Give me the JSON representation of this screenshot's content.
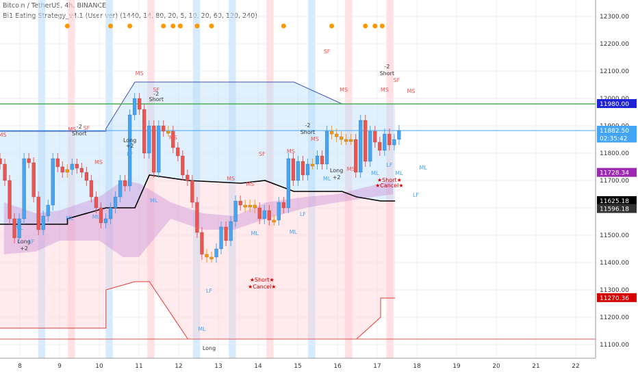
{
  "header": {
    "symbol_line": "Bitcoin / TetherUS, 4h, BINANCE",
    "indicator_line": "Bi1 Eating Strategy_v4.1 (User ver) (1440, 14, 80, 20, 5, 10, 20, 60, 120, 240)"
  },
  "colors": {
    "up": "#42a5f5",
    "down": "#ef5350",
    "neutral": "#ff9800",
    "doji_gray": "#9e9e9e",
    "upper_band": "#3f51b5",
    "mid_line": "#000000",
    "lower_band": "#e53935",
    "green_line": "#4caf50",
    "orange_dot": "#ff9800"
  },
  "chart_data": {
    "type": "candlestick",
    "x_axis": {
      "tick_labels": [
        "8",
        "9",
        "10",
        "11",
        "12",
        "13",
        "14",
        "15",
        "16",
        "17",
        "18",
        "19",
        "20",
        "21",
        "22"
      ],
      "range": [
        7.5,
        22.5
      ]
    },
    "y_axis": {
      "tick_labels": [
        "12300.00",
        "12200.00",
        "12100.00",
        "12000.00",
        "11900.00",
        "11800.00",
        "11700.00",
        "11600.00",
        "11500.00",
        "11400.00",
        "11300.00",
        "11200.00",
        "11100.00"
      ],
      "tick_values": [
        12300,
        12200,
        12100,
        12000,
        11900,
        11800,
        11700,
        11600,
        11500,
        11400,
        11300,
        11200,
        11100
      ],
      "range": [
        11050,
        12360
      ]
    },
    "price_labels": [
      {
        "text": "11980.00",
        "value": 11980,
        "color": "#1e24d6"
      },
      {
        "text": "11882.50",
        "value": 11882.5,
        "color": "#42a5f5"
      },
      {
        "text": "02:35:42",
        "value": 11854,
        "color": "#42a5f5"
      },
      {
        "text": "11728.34",
        "value": 11728.34,
        "color": "#9c27b0"
      },
      {
        "text": "11625.18",
        "value": 11625.18,
        "color": "#000000"
      },
      {
        "text": "11596.18",
        "value": 11596.18,
        "color": "#333333"
      },
      {
        "text": "11270.36",
        "value": 11270.36,
        "color": "#d50000"
      }
    ],
    "horizontal_lines": [
      {
        "name": "resistance",
        "value": 11980,
        "color": "#4caf50"
      },
      {
        "name": "support",
        "value": 11120,
        "color": "#ef5350"
      },
      {
        "name": "last-price",
        "value": 11882.5,
        "color": "#42a5f5"
      }
    ],
    "candles": [
      {
        "x": 7.5,
        "o": 11780,
        "c": 11760
      },
      {
        "x": 7.6,
        "o": 11760,
        "c": 11700
      },
      {
        "x": 7.7,
        "o": 11700,
        "c": 11560
      },
      {
        "x": 7.8,
        "o": 11560,
        "c": 11490
      },
      {
        "x": 7.9,
        "o": 11490,
        "c": 11560
      },
      {
        "x": 8.0,
        "o": 11560,
        "c": 11780
      },
      {
        "x": 8.1,
        "o": 11780,
        "c": 11765
      },
      {
        "x": 8.2,
        "o": 11765,
        "c": 11640
      },
      {
        "x": 8.3,
        "o": 11640,
        "c": 11520
      },
      {
        "x": 8.4,
        "o": 11520,
        "c": 11570
      },
      {
        "x": 8.5,
        "o": 11570,
        "c": 11610
      },
      {
        "x": 8.6,
        "o": 11610,
        "c": 11780
      },
      {
        "x": 8.7,
        "o": 11780,
        "c": 11750
      },
      {
        "x": 8.8,
        "o": 11750,
        "c": 11730
      },
      {
        "x": 8.9,
        "o": 11730,
        "c": 11740
      },
      {
        "x": 9.0,
        "o": 11740,
        "c": 11760
      },
      {
        "x": 9.1,
        "o": 11760,
        "c": 11745
      },
      {
        "x": 9.2,
        "o": 11745,
        "c": 11730
      },
      {
        "x": 9.3,
        "o": 11730,
        "c": 11700
      },
      {
        "x": 9.4,
        "o": 11700,
        "c": 11640
      },
      {
        "x": 9.5,
        "o": 11640,
        "c": 11600
      },
      {
        "x": 9.6,
        "o": 11600,
        "c": 11545
      },
      {
        "x": 9.7,
        "o": 11545,
        "c": 11560
      },
      {
        "x": 9.8,
        "o": 11560,
        "c": 11600
      },
      {
        "x": 9.9,
        "o": 11600,
        "c": 11640
      },
      {
        "x": 10.0,
        "o": 11640,
        "c": 11700
      },
      {
        "x": 10.1,
        "o": 11700,
        "c": 11680
      },
      {
        "x": 10.2,
        "o": 11680,
        "c": 11940
      },
      {
        "x": 10.3,
        "o": 11940,
        "c": 12000
      },
      {
        "x": 10.4,
        "o": 12000,
        "c": 11960
      },
      {
        "x": 10.5,
        "o": 11960,
        "c": 11800
      },
      {
        "x": 10.6,
        "o": 11800,
        "c": 11900
      },
      {
        "x": 10.7,
        "o": 11900,
        "c": 11730
      },
      {
        "x": 10.8,
        "o": 11730,
        "c": 11900
      },
      {
        "x": 10.9,
        "o": 11900,
        "c": 11880
      },
      {
        "x": 11.0,
        "o": 11880,
        "c": 11880
      },
      {
        "x": 11.1,
        "o": 11880,
        "c": 11820
      },
      {
        "x": 11.2,
        "o": 11820,
        "c": 11790
      },
      {
        "x": 11.3,
        "o": 11790,
        "c": 11720
      },
      {
        "x": 11.4,
        "o": 11720,
        "c": 11700
      },
      {
        "x": 11.5,
        "o": 11700,
        "c": 11620
      },
      {
        "x": 11.6,
        "o": 11620,
        "c": 11510
      },
      {
        "x": 11.7,
        "o": 11510,
        "c": 11430
      },
      {
        "x": 11.8,
        "o": 11430,
        "c": 11420
      },
      {
        "x": 11.9,
        "o": 11420,
        "c": 11420
      },
      {
        "x": 12.0,
        "o": 11420,
        "c": 11450
      },
      {
        "x": 12.1,
        "o": 11450,
        "c": 11530
      },
      {
        "x": 12.2,
        "o": 11530,
        "c": 11480
      },
      {
        "x": 12.3,
        "o": 11480,
        "c": 11550
      },
      {
        "x": 12.4,
        "o": 11550,
        "c": 11625
      },
      {
        "x": 12.5,
        "o": 11625,
        "c": 11610
      },
      {
        "x": 12.6,
        "o": 11610,
        "c": 11605
      },
      {
        "x": 12.7,
        "o": 11605,
        "c": 11610
      },
      {
        "x": 12.8,
        "o": 11610,
        "c": 11600
      },
      {
        "x": 12.9,
        "o": 11600,
        "c": 11560
      },
      {
        "x": 13.0,
        "o": 11560,
        "c": 11590
      },
      {
        "x": 13.1,
        "o": 11590,
        "c": 11555
      },
      {
        "x": 13.2,
        "o": 11555,
        "c": 11555
      },
      {
        "x": 13.3,
        "o": 11555,
        "c": 11620
      },
      {
        "x": 13.4,
        "o": 11620,
        "c": 11600
      },
      {
        "x": 13.5,
        "o": 11600,
        "c": 11780
      },
      {
        "x": 13.6,
        "o": 11780,
        "c": 11700
      },
      {
        "x": 13.7,
        "o": 11700,
        "c": 11770
      },
      {
        "x": 13.8,
        "o": 11770,
        "c": 11720
      },
      {
        "x": 13.9,
        "o": 11720,
        "c": 11760
      },
      {
        "x": 14.0,
        "o": 11760,
        "c": 11760
      },
      {
        "x": 14.1,
        "o": 11760,
        "c": 11790
      },
      {
        "x": 14.2,
        "o": 11790,
        "c": 11760
      },
      {
        "x": 14.3,
        "o": 11760,
        "c": 11880
      },
      {
        "x": 14.4,
        "o": 11880,
        "c": 11870
      },
      {
        "x": 14.5,
        "o": 11870,
        "c": 11860
      },
      {
        "x": 14.6,
        "o": 11860,
        "c": 11850
      },
      {
        "x": 14.7,
        "o": 11850,
        "c": 11850
      },
      {
        "x": 14.8,
        "o": 11850,
        "c": 11850
      },
      {
        "x": 14.9,
        "o": 11850,
        "c": 11730
      },
      {
        "x": 15.0,
        "o": 11730,
        "c": 11920
      },
      {
        "x": 15.1,
        "o": 11920,
        "c": 11770
      },
      {
        "x": 15.2,
        "o": 11770,
        "c": 11880
      },
      {
        "x": 15.3,
        "o": 11880,
        "c": 11840
      },
      {
        "x": 15.4,
        "o": 11840,
        "c": 11810
      },
      {
        "x": 15.5,
        "o": 11810,
        "c": 11870
      },
      {
        "x": 15.6,
        "o": 11870,
        "c": 11830
      },
      {
        "x": 15.7,
        "o": 11830,
        "c": 11850
      },
      {
        "x": 15.8,
        "o": 11850,
        "c": 11882.5
      }
    ],
    "bands": {
      "x": [
        7.5,
        8.9,
        8.9,
        9.7,
        9.7,
        10.3,
        10.6,
        10.6,
        11.4,
        12.5,
        13.0,
        13.6,
        14.6,
        14.9,
        15.4,
        15.4,
        15.7
      ],
      "upper": [
        11880,
        11880,
        11880,
        11880,
        11890,
        12060,
        12060,
        12060,
        12060,
        12060,
        12060,
        12060,
        11980,
        11980,
        11980,
        11980,
        11980
      ],
      "mid": [
        11540,
        11540,
        11560,
        11600,
        11600,
        11600,
        11720,
        11720,
        11700,
        11690,
        11700,
        11660,
        11660,
        11640,
        11625,
        11625,
        11625
      ],
      "lower": [
        11160,
        11160,
        11160,
        11160,
        11300,
        11330,
        11330,
        11330,
        11120,
        11120,
        11120,
        11120,
        11120,
        11120,
        11200,
        11270,
        11270
      ]
    },
    "annotations": [
      {
        "text": "MS",
        "x": 7.55,
        "y": 11860,
        "color": "#ef5350"
      },
      {
        "text": "MS",
        "x": 9.0,
        "y": 11880,
        "color": "#ef5350"
      },
      {
        "text": "-2",
        "x": 9.15,
        "y": 11890,
        "color": "#333"
      },
      {
        "text": "Short",
        "x": 9.15,
        "y": 11865,
        "color": "#333"
      },
      {
        "text": "SF",
        "x": 9.3,
        "y": 11885,
        "color": "#ef5350"
      },
      {
        "text": "MS",
        "x": 9.55,
        "y": 11760,
        "color": "#ef5350"
      },
      {
        "text": "MS",
        "x": 10.4,
        "y": 12085,
        "color": "#ef5350"
      },
      {
        "text": "SF",
        "x": 10.75,
        "y": 12025,
        "color": "#ef5350"
      },
      {
        "text": "-2",
        "x": 10.75,
        "y": 12010,
        "color": "#333"
      },
      {
        "text": "Short",
        "x": 10.75,
        "y": 11990,
        "color": "#333"
      },
      {
        "text": "MS",
        "x": 11.1,
        "y": 11850,
        "color": "#ef5350"
      },
      {
        "text": "Long",
        "x": 10.2,
        "y": 11840,
        "color": "#333"
      },
      {
        "text": "+2",
        "x": 10.2,
        "y": 11820,
        "color": "#333"
      },
      {
        "text": "LF",
        "x": 10.2,
        "y": 11790,
        "color": "#42a5f5"
      },
      {
        "text": "ML",
        "x": 7.9,
        "y": 11520,
        "color": "#42a5f5"
      },
      {
        "text": "Long",
        "x": 8.0,
        "y": 11470,
        "color": "#333"
      },
      {
        "text": "+2",
        "x": 8.0,
        "y": 11445,
        "color": "#333"
      },
      {
        "text": "LF",
        "x": 8.15,
        "y": 11470,
        "color": "#42a5f5"
      },
      {
        "text": "ML",
        "x": 8.95,
        "y": 11555,
        "color": "#42a5f5"
      },
      {
        "text": "ML",
        "x": 9.5,
        "y": 11560,
        "color": "#42a5f5"
      },
      {
        "text": "ML",
        "x": 10.7,
        "y": 11620,
        "color": "#42a5f5"
      },
      {
        "text": "MS",
        "x": 12.3,
        "y": 11700,
        "color": "#ef5350"
      },
      {
        "text": "MS",
        "x": 12.7,
        "y": 11680,
        "color": "#ef5350"
      },
      {
        "text": "SF",
        "x": 12.95,
        "y": 11790,
        "color": "#ef5350"
      },
      {
        "text": "ML",
        "x": 12.8,
        "y": 11500,
        "color": "#42a5f5"
      },
      {
        "text": "★Short★",
        "x": 12.95,
        "y": 11330,
        "color": "#d50000"
      },
      {
        "text": "★Cancel★",
        "x": 12.95,
        "y": 11305,
        "color": "#d50000"
      },
      {
        "text": "LF",
        "x": 11.85,
        "y": 11290,
        "color": "#42a5f5"
      },
      {
        "text": "ML",
        "x": 11.7,
        "y": 11150,
        "color": "#42a5f5"
      },
      {
        "text": "Long",
        "x": 11.85,
        "y": 11080,
        "color": "#333"
      },
      {
        "text": "LF",
        "x": 13.8,
        "y": 11570,
        "color": "#42a5f5"
      },
      {
        "text": "ML",
        "x": 13.6,
        "y": 11505,
        "color": "#42a5f5"
      },
      {
        "text": "-2",
        "x": 13.9,
        "y": 11895,
        "color": "#333"
      },
      {
        "text": "Short",
        "x": 13.9,
        "y": 11870,
        "color": "#333"
      },
      {
        "text": "MS",
        "x": 14.05,
        "y": 11845,
        "color": "#ef5350"
      },
      {
        "text": "MS",
        "x": 13.55,
        "y": 11800,
        "color": "#ef5350"
      },
      {
        "text": "MS",
        "x": 14.8,
        "y": 11735,
        "color": "#ef5350"
      },
      {
        "text": "ML",
        "x": 14.3,
        "y": 11700,
        "color": "#42a5f5"
      },
      {
        "text": "Long",
        "x": 14.5,
        "y": 11730,
        "color": "#333"
      },
      {
        "text": "+2",
        "x": 14.5,
        "y": 11705,
        "color": "#333"
      },
      {
        "text": "SF",
        "x": 14.3,
        "y": 12165,
        "color": "#ef5350"
      },
      {
        "text": "MS",
        "x": 14.65,
        "y": 12025,
        "color": "#ef5350"
      },
      {
        "text": "-2",
        "x": 15.55,
        "y": 12110,
        "color": "#333"
      },
      {
        "text": "Short",
        "x": 15.55,
        "y": 12085,
        "color": "#333"
      },
      {
        "text": "SF",
        "x": 15.75,
        "y": 12060,
        "color": "#ef5350"
      },
      {
        "text": "MS",
        "x": 15.5,
        "y": 12025,
        "color": "#ef5350"
      },
      {
        "text": "MS",
        "x": 16.05,
        "y": 12020,
        "color": "#ef5350"
      },
      {
        "text": "LF",
        "x": 15.6,
        "y": 11750,
        "color": "#42a5f5"
      },
      {
        "text": "ML",
        "x": 15.3,
        "y": 11720,
        "color": "#42a5f5"
      },
      {
        "text": "ML",
        "x": 15.8,
        "y": 11720,
        "color": "#42a5f5"
      },
      {
        "text": "★Short★",
        "x": 15.6,
        "y": 11695,
        "color": "#d50000"
      },
      {
        "text": "★Cancel★",
        "x": 15.6,
        "y": 11675,
        "color": "#d50000"
      },
      {
        "text": "LF",
        "x": 16.15,
        "y": 11640,
        "color": "#42a5f5"
      },
      {
        "text": "ML",
        "x": 16.3,
        "y": 11740,
        "color": "#42a5f5"
      }
    ]
  }
}
